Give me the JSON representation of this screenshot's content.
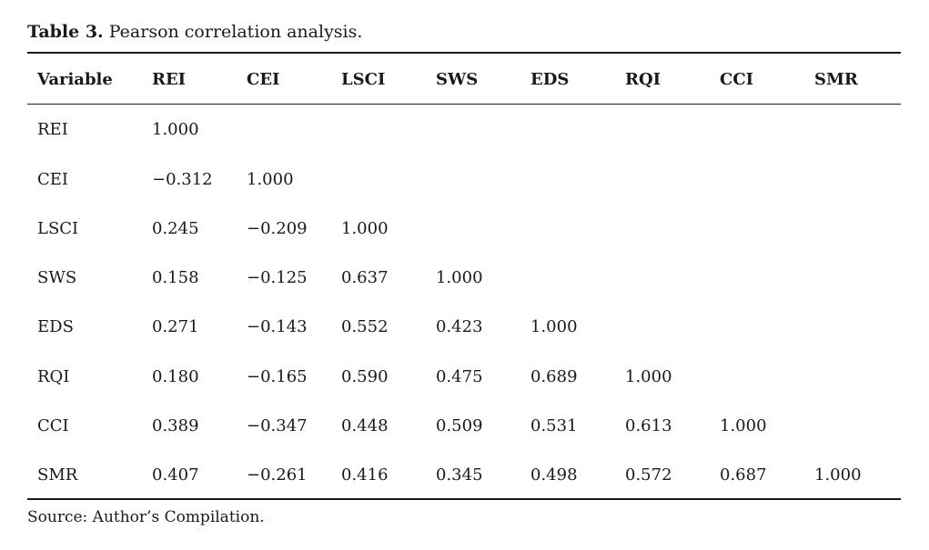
{
  "caption": {
    "label": "Table 3.",
    "text": "Pearson correlation analysis."
  },
  "table": {
    "headers": [
      "Variable",
      "REI",
      "CEI",
      "LSCI",
      "SWS",
      "EDS",
      "RQI",
      "CCI",
      "SMR"
    ],
    "rows": [
      [
        "REI",
        "1.000",
        "",
        "",
        "",
        "",
        "",
        "",
        ""
      ],
      [
        "CEI",
        "−0.312",
        "1.000",
        "",
        "",
        "",
        "",
        "",
        ""
      ],
      [
        "LSCI",
        "0.245",
        "−0.209",
        "1.000",
        "",
        "",
        "",
        "",
        ""
      ],
      [
        "SWS",
        "0.158",
        "−0.125",
        "0.637",
        "1.000",
        "",
        "",
        "",
        ""
      ],
      [
        "EDS",
        "0.271",
        "−0.143",
        "0.552",
        "0.423",
        "1.000",
        "",
        "",
        ""
      ],
      [
        "RQI",
        "0.180",
        "−0.165",
        "0.590",
        "0.475",
        "0.689",
        "1.000",
        "",
        ""
      ],
      [
        "CCI",
        "0.389",
        "−0.347",
        "0.448",
        "0.509",
        "0.531",
        "0.613",
        "1.000",
        ""
      ],
      [
        "SMR",
        "0.407",
        "−0.261",
        "0.416",
        "0.345",
        "0.498",
        "0.572",
        "0.687",
        "1.000"
      ]
    ]
  },
  "source": "Source: Author’s Compilation."
}
